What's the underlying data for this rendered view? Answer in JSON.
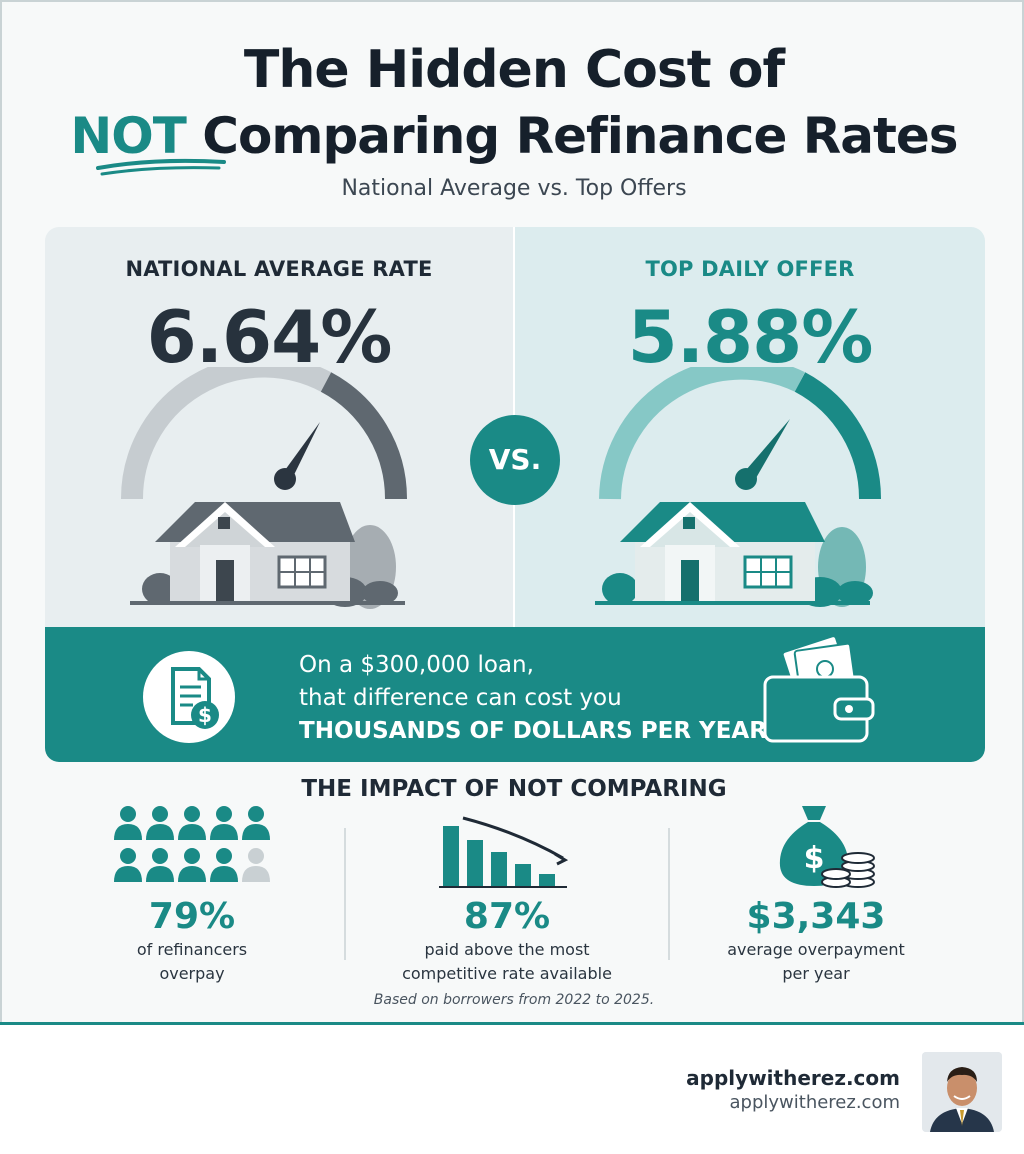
{
  "title": {
    "line1": "The Hidden Cost of",
    "line2_accent": "NOT",
    "line2_rest": " Comparing Refinance Rates"
  },
  "subtitle": "National Average vs. Top Offers",
  "comparison": {
    "left": {
      "heading": "NATIONAL AVERAGE RATE",
      "rate": "6.64%"
    },
    "vs_label": "VS.",
    "right": {
      "heading": "TOP DAILY OFFER",
      "rate": "5.88%"
    }
  },
  "banner": {
    "line1": "On a $300,000 loan,",
    "line2": "that difference can cost you",
    "line3": "THOUSANDS OF DOLLARS PER YEAR."
  },
  "impact": {
    "heading": "THE IMPACT OF NOT COMPARING",
    "stats": [
      {
        "value": "79%",
        "caption_line1": "of refinancers",
        "caption_line2": "overpay",
        "icon": "people-group-icon"
      },
      {
        "value": "87%",
        "caption_line1": "paid above the most",
        "caption_line2": "competitive rate available",
        "icon": "declining-bar-chart-icon"
      },
      {
        "value": "$3,343",
        "caption_line1": "average overpayment",
        "caption_line2": "per year",
        "icon": "money-bag-icon"
      }
    ],
    "footnote": "Based on borrowers from 2022 to 2025."
  },
  "brand": {
    "name": "applywitherez.com",
    "url": "applywitherez.com"
  },
  "colors": {
    "accent": "#1a8a86",
    "dark": "#1f2a36",
    "gray_panel": "#e8eef0",
    "teal_panel": "#dcecee"
  }
}
